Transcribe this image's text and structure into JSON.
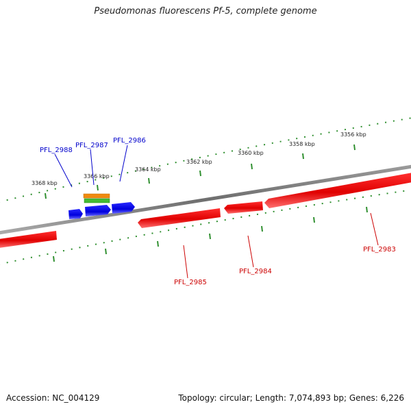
{
  "title": "Pseudomonas fluorescens Pf-5, complete genome",
  "footer": {
    "accession": "Accession: NC_004129",
    "summary": "Topology: circular; Length: 7,074,893 bp; Genes: 6,226"
  },
  "colors": {
    "reverse_gene": "#ee1111",
    "forward_gene": "#1111ee",
    "backbone": "#808080",
    "ticks": "#2f8f2f",
    "label_forward": "#0000cc",
    "label_reverse": "#cc0000",
    "feature_orange": "#f08a10",
    "feature_green": "#44bb33"
  },
  "scale_labels": [
    {
      "text": "3368 kbp"
    },
    {
      "text": "3366 kbp"
    },
    {
      "text": "3364 kbp"
    },
    {
      "text": "3362 kbp"
    },
    {
      "text": "3360 kbp"
    },
    {
      "text": "3358 kbp"
    },
    {
      "text": "3356 kbp"
    }
  ],
  "genes": [
    {
      "label": "PFL_2988",
      "strand": "forward"
    },
    {
      "label": "PFL_2987",
      "strand": "forward"
    },
    {
      "label": "PFL_2986",
      "strand": "forward"
    },
    {
      "label": "PFL_2985",
      "strand": "reverse"
    },
    {
      "label": "PFL_2984",
      "strand": "reverse"
    },
    {
      "label": "PFL_2983",
      "strand": "reverse"
    }
  ]
}
